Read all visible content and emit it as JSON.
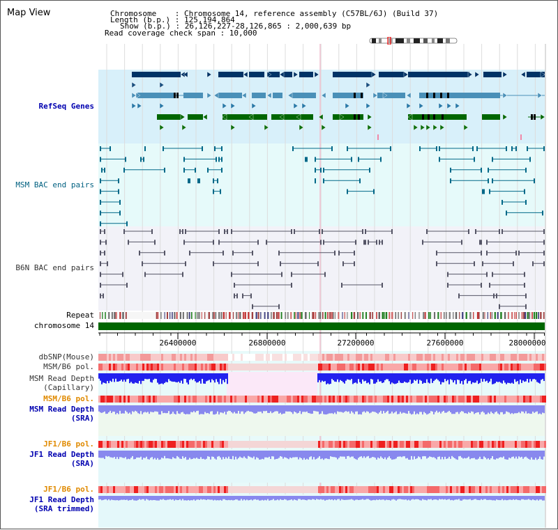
{
  "map_title": "Map View",
  "info": {
    "chromosome": "Chromosome    : Chromosome 14, reference assembly (C57BL/6J) (Build 37)",
    "length": "Length (b.p.) : 125,194,864",
    "show": "Show (b.p.) : 26,126,227-28,126,865 : 2,000,639 bp",
    "coverage": "Read coverage check span : 10,000"
  },
  "tracks": {
    "refseq": "RefSeq Genes",
    "msm_bac": "MSM BAC end pairs",
    "b6n_bac": "B6N BAC end pairs",
    "repeat": "Repeat",
    "chromosome": "chromosome 14",
    "dbsnp": "dbSNP(Mouse)",
    "msm_b6_pol_1": "MSM/B6 pol.",
    "msm_depth_cap_1": "MSM Read Depth",
    "msm_depth_cap_2": "(Capillary)",
    "msm_b6_pol_2": "MSM/B6 pol.",
    "msm_depth_sra_1": "MSM Read Depth",
    "msm_depth_sra_2": "(SRA)",
    "jf1_b6_pol_1": "JF1/B6 pol.",
    "jf1_depth_sra_1": "JF1 Read Depth",
    "jf1_depth_sra_2": "(SRA)",
    "jf1_b6_pol_2": "JF1/B6 pol.",
    "jf1_depth_trim_1": "JF1 Read Depth",
    "jf1_depth_trim_2": "(SRA trimmed)"
  },
  "axis": {
    "ticks": [
      "26400000",
      "26800000",
      "27200000",
      "27600000",
      "28000000"
    ]
  },
  "colors": {
    "refseq_bg": "#d8f0fa",
    "msm_bac_bg": "#e6fafa",
    "b6n_bac_bg": "#f2f2f8",
    "dark_gene": "#003366",
    "mid_gene": "#4a90b8",
    "green_gene": "#006600",
    "chromosome_bar": "#006600",
    "depth_blue": "#2222ee",
    "depth_lavender": "#8888ee",
    "pol_red": "#ee2222"
  }
}
